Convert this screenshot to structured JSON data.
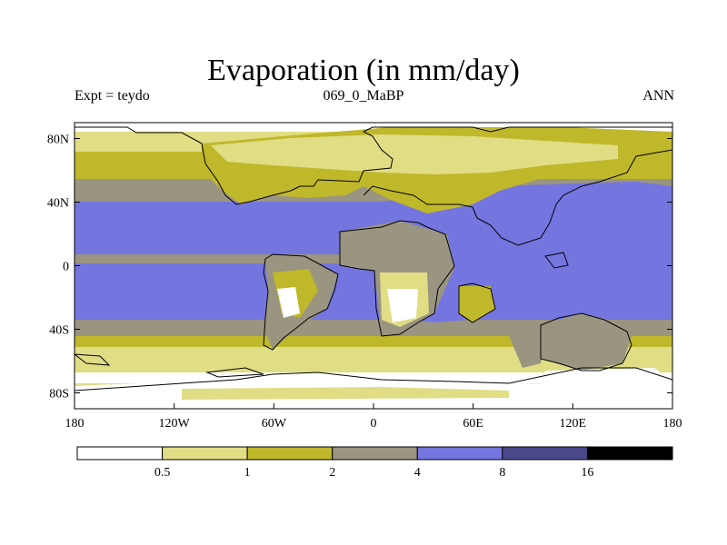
{
  "title": "Evaporation (in mm/day)",
  "subtitle_left": "Expt = teydo",
  "subtitle_center": "069_0_MaBP",
  "subtitle_right": "ANN",
  "map": {
    "lon_range": [
      -180,
      180
    ],
    "lat_range": [
      -90,
      90
    ],
    "y_ticks": [
      {
        "lat": 80,
        "label": "80N"
      },
      {
        "lat": 40,
        "label": "40N"
      },
      {
        "lat": 0,
        "label": "0"
      },
      {
        "lat": -40,
        "label": "40S"
      },
      {
        "lat": -80,
        "label": "80S"
      }
    ],
    "x_ticks": [
      {
        "lon": -180,
        "label": "180"
      },
      {
        "lon": -120,
        "label": "120W"
      },
      {
        "lon": -60,
        "label": "60W"
      },
      {
        "lon": 0,
        "label": "0"
      },
      {
        "lon": 60,
        "label": "60E"
      },
      {
        "lon": 120,
        "label": "120E"
      },
      {
        "lon": 180,
        "label": "180"
      }
    ]
  },
  "colorbar": {
    "levels": [
      "0.5",
      "1",
      "2",
      "4",
      "8",
      "16"
    ],
    "colors": [
      "#ffffff",
      "#e0dd85",
      "#bfb82a",
      "#9a9580",
      "#7575e0",
      "#4a4a8a",
      "#000000"
    ]
  }
}
